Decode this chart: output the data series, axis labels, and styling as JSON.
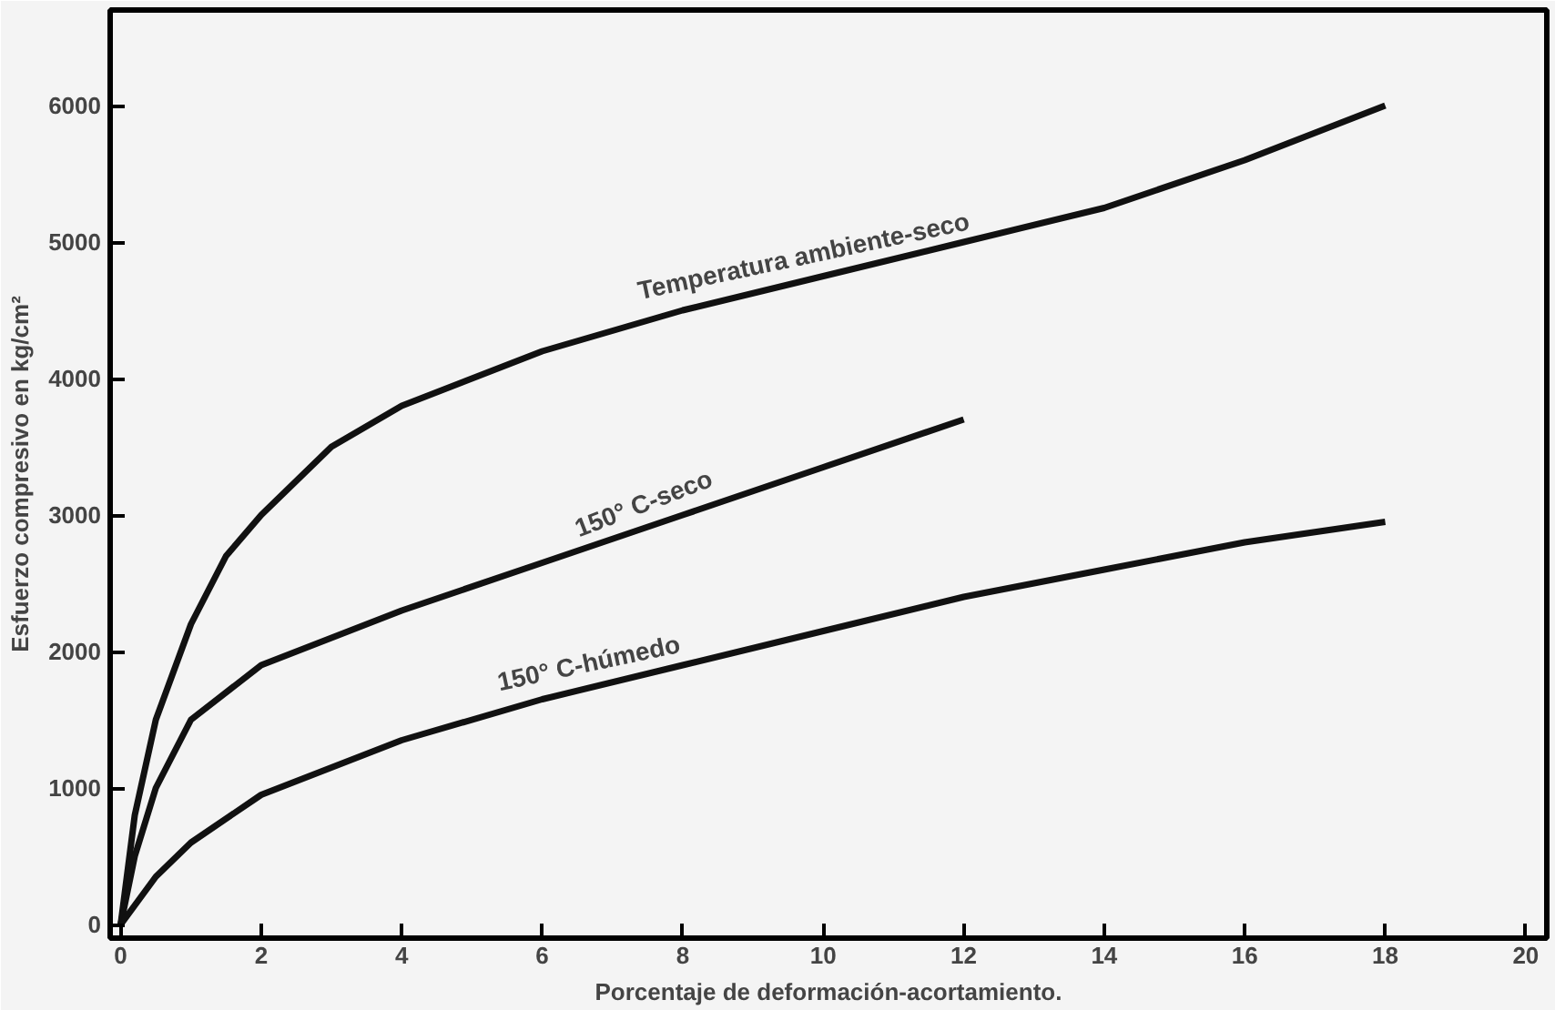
{
  "chart_data": {
    "type": "line",
    "xlabel": "Porcentaje de deformación-acortamiento.",
    "ylabel": "Esfuerzo compresivo en kg/cm²",
    "xlim": [
      -0.15,
      20.3
    ],
    "ylim": [
      -100,
      6700
    ],
    "xticks": [
      0,
      2,
      4,
      6,
      8,
      10,
      12,
      14,
      16,
      18,
      20
    ],
    "yticks": [
      0,
      1000,
      2000,
      3000,
      4000,
      5000,
      6000
    ],
    "grid": false,
    "marker": "none",
    "line_style": "solid",
    "series": [
      {
        "name": "Temperatura ambiente-seco",
        "color": "#111111",
        "x": [
          0,
          0.2,
          0.5,
          1,
          1.5,
          2,
          3,
          4,
          6,
          8,
          10,
          12,
          14,
          16,
          18
        ],
        "values": [
          0,
          800,
          1500,
          2200,
          2700,
          3000,
          3500,
          3800,
          4200,
          4500,
          4750,
          5000,
          5250,
          5600,
          6000
        ]
      },
      {
        "name": "150° C-seco",
        "color": "#111111",
        "x": [
          0,
          0.2,
          0.5,
          1,
          2,
          4,
          6,
          8,
          10,
          12
        ],
        "values": [
          0,
          500,
          1000,
          1500,
          1900,
          2300,
          2650,
          3000,
          3350,
          3700
        ]
      },
      {
        "name": "150° C-húmedo",
        "color": "#111111",
        "x": [
          0,
          0.5,
          1,
          2,
          4,
          6,
          8,
          10,
          12,
          14,
          16,
          18
        ],
        "values": [
          0,
          350,
          600,
          950,
          1350,
          1650,
          1900,
          2150,
          2400,
          2600,
          2800,
          2950
        ]
      }
    ]
  }
}
